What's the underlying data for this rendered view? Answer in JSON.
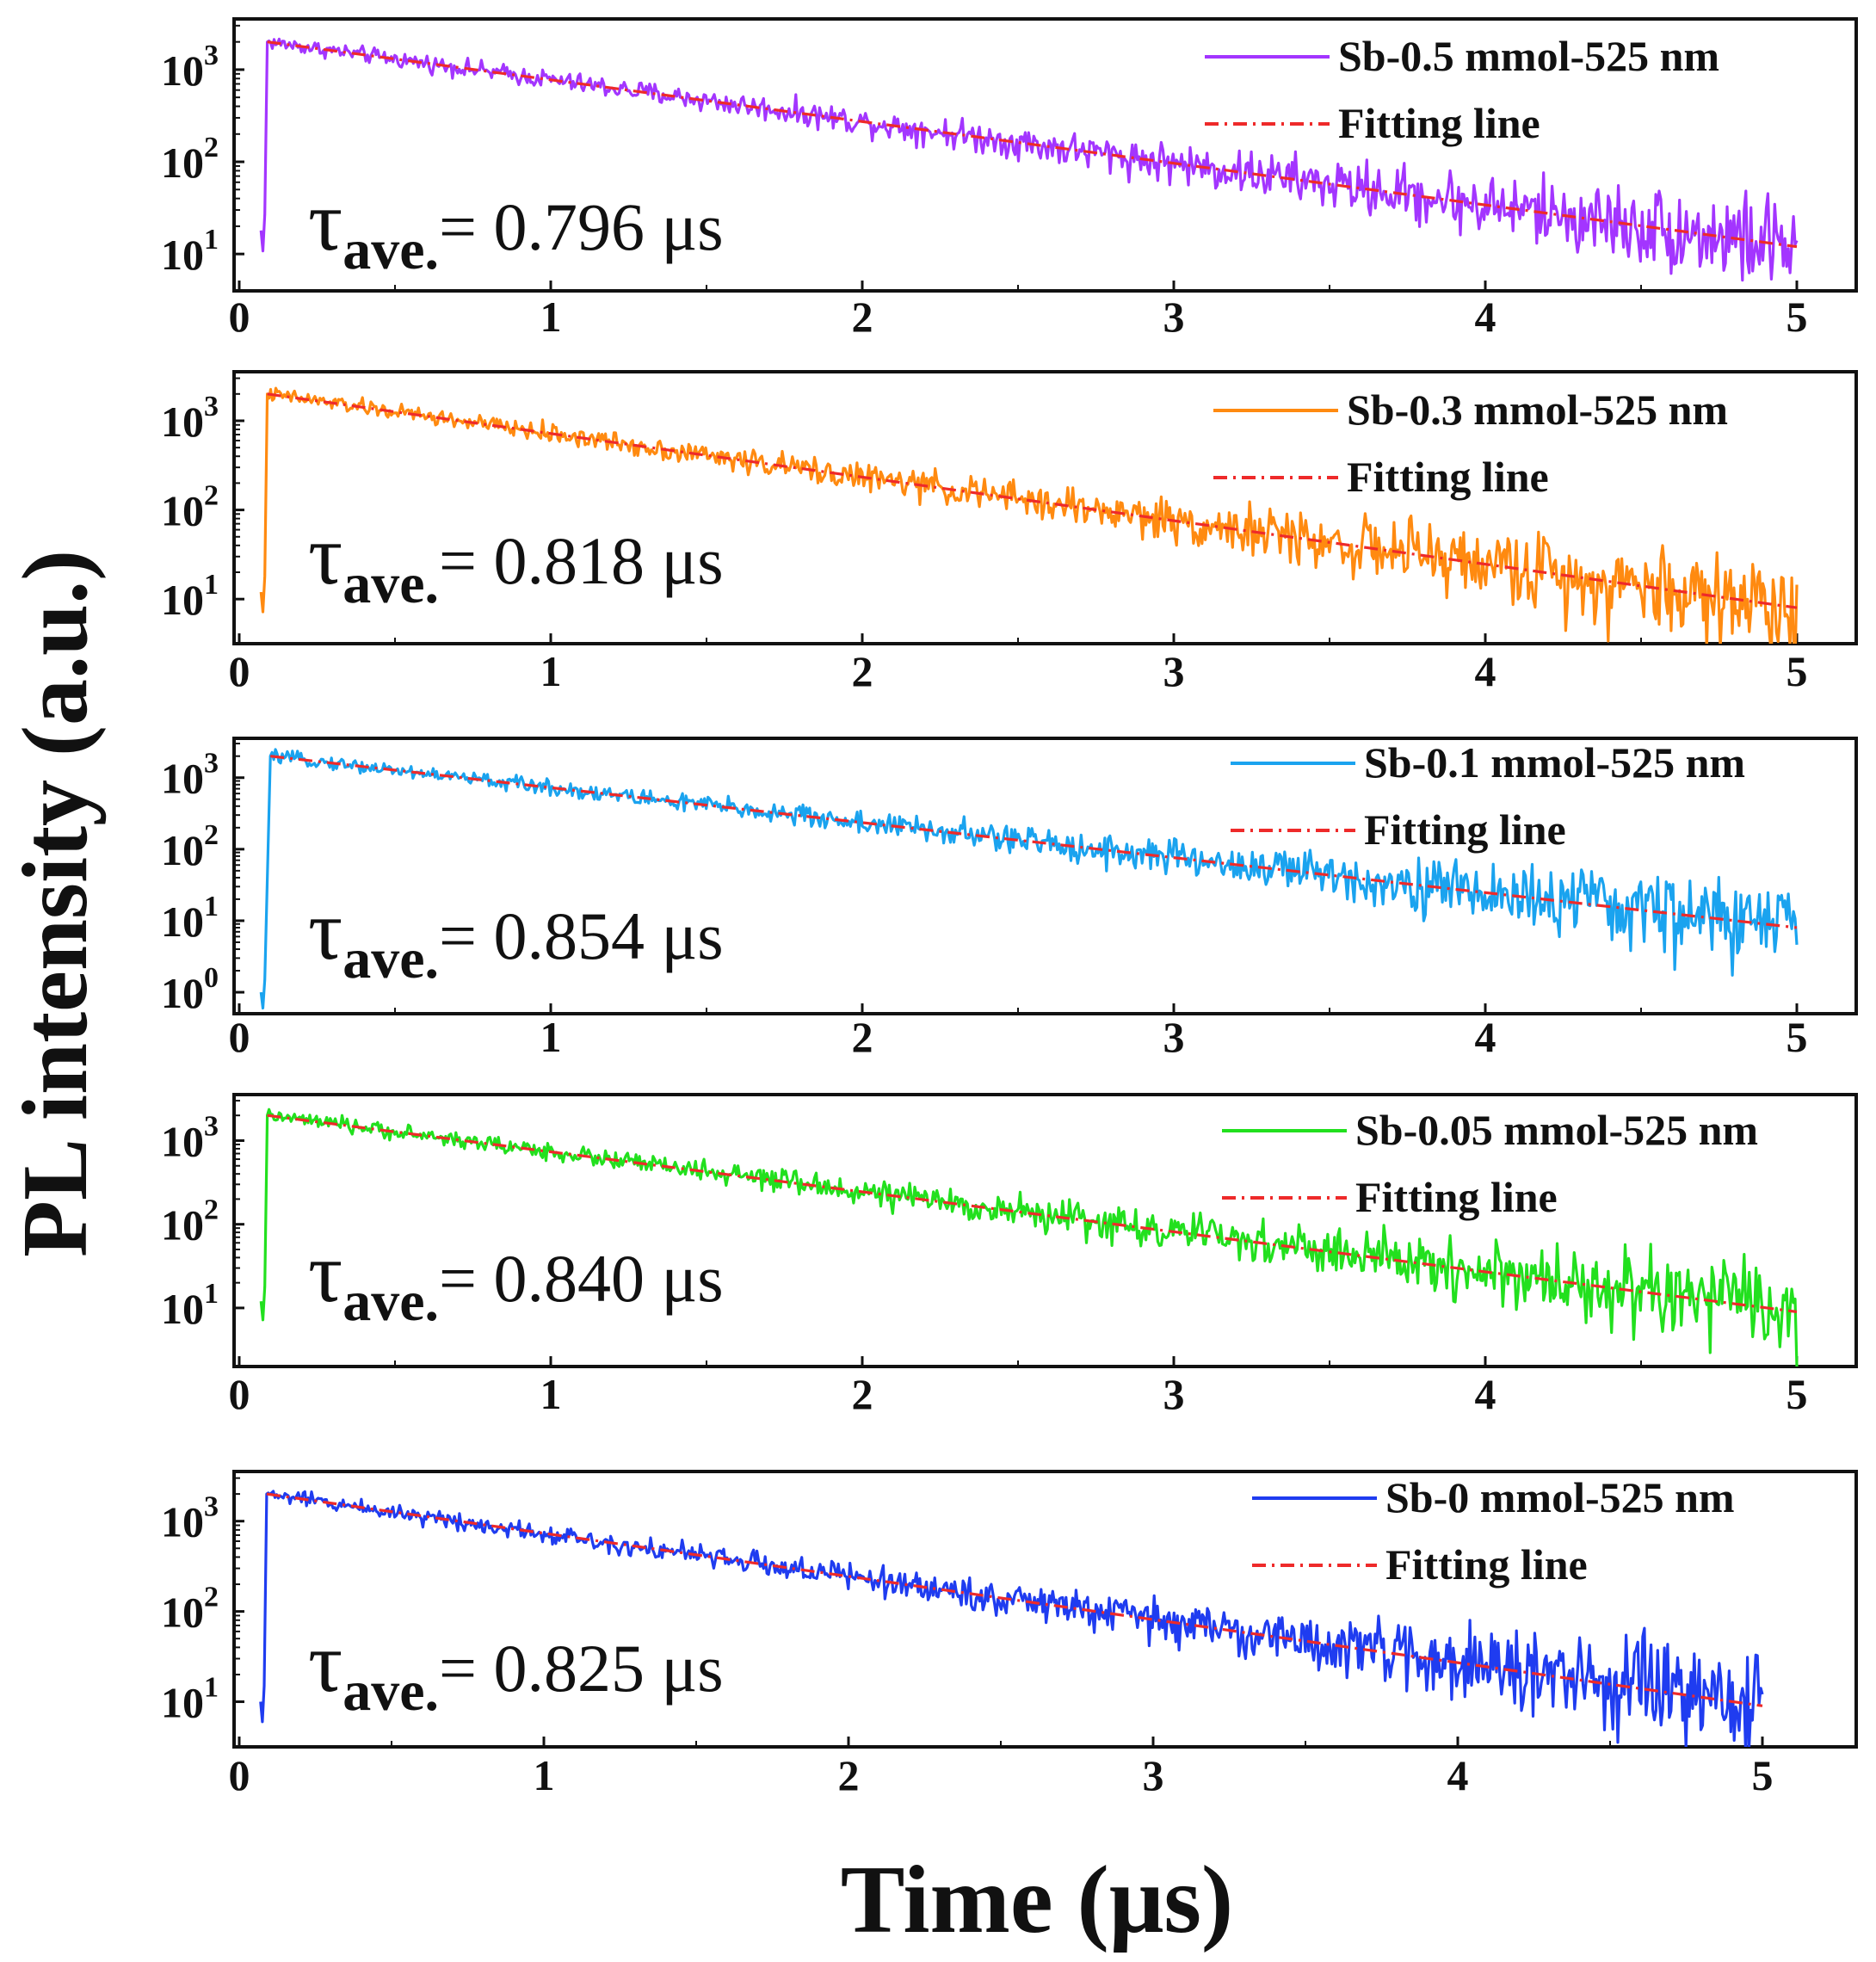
{
  "chart_data": {
    "type": "line",
    "shared_ylabel": "PL intensity (a.u.)",
    "shared_xlabel": "Time (μs)",
    "yscale": "log",
    "fit_color": "#ee2a2a",
    "panels": [
      {
        "series_name": "Sb-0.5 mmol-525 nm",
        "fit_name": "Fitting line",
        "color": "#a335ff",
        "tau": {
          "symbol": "τ",
          "sub": "ave.",
          "value": "= 0.796 μs"
        },
        "xlim": [
          0,
          5.2
        ],
        "xticks": [
          "0",
          "1",
          "2",
          "3",
          "4",
          "5"
        ],
        "ylim_exp": [
          0.6,
          3.55
        ],
        "yticks": [
          {
            "base": "10",
            "exp": "1"
          },
          {
            "base": "10",
            "exp": "2"
          },
          {
            "base": "10",
            "exp": "3"
          }
        ],
        "rise_start": 0.07,
        "peak_time": 0.09,
        "start_value": 18,
        "peak_value": 2000,
        "end_value": 12,
        "end_time": 5.0,
        "noise_floor": 2.5,
        "x_axis_extent": 5.2
      },
      {
        "series_name": "Sb-0.3 mmol-525 nm",
        "fit_name": "Fitting line",
        "color": "#ff8a10",
        "tau": {
          "symbol": "τ",
          "sub": "ave.",
          "value": "= 0.818 μs"
        },
        "xlim": [
          0,
          5.2
        ],
        "xticks": [
          "0",
          "1",
          "2",
          "3",
          "4",
          "5"
        ],
        "ylim_exp": [
          0.5,
          3.55
        ],
        "yticks": [
          {
            "base": "10",
            "exp": "1"
          },
          {
            "base": "10",
            "exp": "2"
          },
          {
            "base": "10",
            "exp": "3"
          }
        ],
        "rise_start": 0.07,
        "peak_time": 0.09,
        "start_value": 12,
        "peak_value": 2000,
        "end_value": 8,
        "end_time": 5.0,
        "noise_floor": 2.5,
        "x_axis_extent": 5.2
      },
      {
        "series_name": "Sb-0.1 mmol-525 nm",
        "fit_name": "Fitting line",
        "color": "#1aa3ef",
        "tau": {
          "symbol": "τ",
          "sub": "ave.",
          "value": "= 0.854 μs"
        },
        "xlim": [
          0,
          5.2
        ],
        "xticks": [
          "0",
          "1",
          "2",
          "3",
          "4",
          "5"
        ],
        "ylim_exp": [
          -0.3,
          3.55
        ],
        "yticks": [
          {
            "base": "10",
            "exp": "0"
          },
          {
            "base": "10",
            "exp": "1"
          },
          {
            "base": "10",
            "exp": "2"
          },
          {
            "base": "10",
            "exp": "3"
          }
        ],
        "rise_start": 0.07,
        "peak_time": 0.1,
        "start_value": 1,
        "peak_value": 2000,
        "end_value": 8,
        "end_time": 5.0,
        "noise_floor": 3,
        "x_axis_extent": 5.2
      },
      {
        "series_name": "Sb-0.05 mmol-525 nm",
        "fit_name": "Fitting line",
        "color": "#22e01e",
        "tau": {
          "symbol": "τ",
          "sub": "ave.",
          "value": "= 0.840 μs"
        },
        "xlim": [
          0,
          5.2
        ],
        "xticks": [
          "0",
          "1",
          "2",
          "3",
          "4",
          "5"
        ],
        "ylim_exp": [
          0.3,
          3.55
        ],
        "yticks": [
          {
            "base": "10",
            "exp": "1"
          },
          {
            "base": "10",
            "exp": "2"
          },
          {
            "base": "10",
            "exp": "3"
          }
        ],
        "rise_start": 0.07,
        "peak_time": 0.09,
        "start_value": 12,
        "peak_value": 2000,
        "end_value": 9,
        "end_time": 5.0,
        "noise_floor": 2.5,
        "x_axis_extent": 5.2
      },
      {
        "series_name": "Sb-0 mmol-525 nm",
        "fit_name": "Fitting line",
        "color": "#1f3cf0",
        "tau": {
          "symbol": "τ",
          "sub": "ave.",
          "value": "= 0.825 μs"
        },
        "xlim": [
          0,
          5.3
        ],
        "xticks": [
          "0",
          "1",
          "2",
          "3",
          "4",
          "5"
        ],
        "ylim_exp": [
          0.5,
          3.55
        ],
        "yticks": [
          {
            "base": "10",
            "exp": "1"
          },
          {
            "base": "10",
            "exp": "2"
          },
          {
            "base": "10",
            "exp": "3"
          }
        ],
        "rise_start": 0.07,
        "peak_time": 0.09,
        "start_value": 10,
        "peak_value": 2000,
        "end_value": 9,
        "end_time": 5.0,
        "noise_floor": 2.5,
        "x_axis_extent": 5.3
      }
    ]
  }
}
